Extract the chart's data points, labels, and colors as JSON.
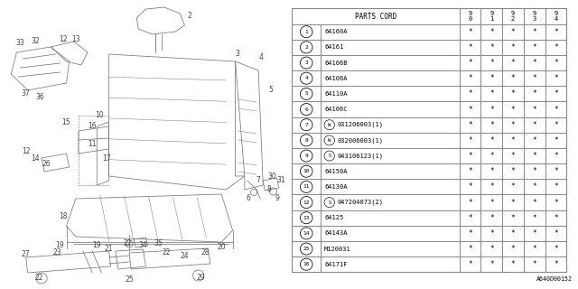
{
  "bg_color": "#ffffff",
  "table_header": "PARTS CORD",
  "col_headers": [
    "9\n0",
    "9\n1",
    "9\n2",
    "9\n3",
    "9\n4"
  ],
  "rows": [
    {
      "num": "1",
      "part": "64160A",
      "prefix": null,
      "vals": [
        "*",
        "*",
        "*",
        "*",
        "*"
      ]
    },
    {
      "num": "2",
      "part": "64161",
      "prefix": null,
      "vals": [
        "*",
        "*",
        "*",
        "*",
        "*"
      ]
    },
    {
      "num": "3",
      "part": "64106B",
      "prefix": null,
      "vals": [
        "*",
        "*",
        "*",
        "*",
        "*"
      ]
    },
    {
      "num": "4",
      "part": "64106A",
      "prefix": null,
      "vals": [
        "*",
        "*",
        "*",
        "*",
        "*"
      ]
    },
    {
      "num": "5",
      "part": "64110A",
      "prefix": null,
      "vals": [
        "*",
        "*",
        "*",
        "*",
        "*"
      ]
    },
    {
      "num": "6",
      "part": "64106C",
      "prefix": null,
      "vals": [
        "*",
        "*",
        "*",
        "*",
        "*"
      ]
    },
    {
      "num": "7",
      "part": "031206003(1)",
      "prefix": "W",
      "vals": [
        "*",
        "*",
        "*",
        "*",
        "*"
      ]
    },
    {
      "num": "8",
      "part": "032006003(1)",
      "prefix": "W",
      "vals": [
        "*",
        "*",
        "*",
        "*",
        "*"
      ]
    },
    {
      "num": "9",
      "part": "043106123(1)",
      "prefix": "S",
      "vals": [
        "*",
        "*",
        "*",
        "*",
        "*"
      ]
    },
    {
      "num": "10",
      "part": "64150A",
      "prefix": null,
      "vals": [
        "*",
        "*",
        "*",
        "*",
        "*"
      ]
    },
    {
      "num": "11",
      "part": "64130A",
      "prefix": null,
      "vals": [
        "*",
        "*",
        "*",
        "*",
        "*"
      ]
    },
    {
      "num": "12",
      "part": "047204073(2)",
      "prefix": "S",
      "vals": [
        "*",
        "*",
        "*",
        "*",
        "*"
      ]
    },
    {
      "num": "13",
      "part": "64125",
      "prefix": null,
      "vals": [
        "*",
        "*",
        "*",
        "*",
        "*"
      ]
    },
    {
      "num": "14",
      "part": "64143A",
      "prefix": null,
      "vals": [
        "*",
        "*",
        "*",
        "*",
        "*"
      ]
    },
    {
      "num": "15",
      "part": "M120031",
      "prefix": null,
      "vals": [
        "*",
        "*",
        "*",
        "*",
        "*"
      ]
    },
    {
      "num": "16",
      "part": "64171F",
      "prefix": null,
      "vals": [
        "*",
        "*",
        "*",
        "*",
        "*"
      ]
    }
  ],
  "footnote": "A640D00152",
  "line_color": "#777777",
  "label_color": "#444444",
  "table_line_color": "#888888"
}
